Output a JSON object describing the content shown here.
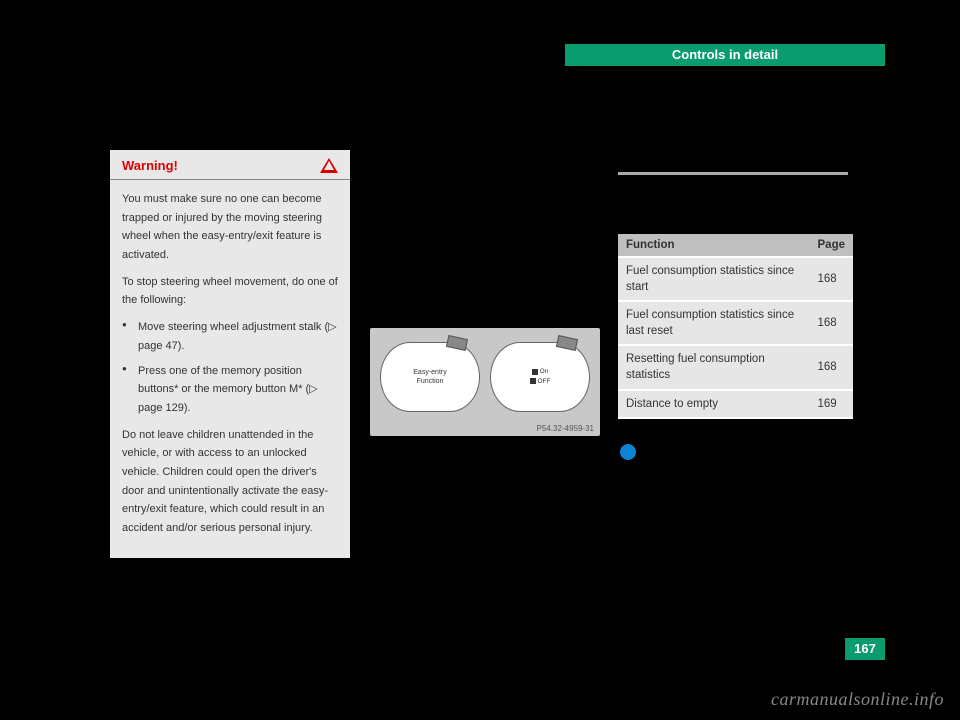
{
  "header": {
    "title": "Controls in detail"
  },
  "warning": {
    "title": "Warning!",
    "p1": "You must make sure no one can become trapped or injured by the moving steering wheel when the easy-entry/exit feature is activated.",
    "p2": "To stop steering wheel movement, do one of the following:",
    "li1": "Move steering wheel adjustment stalk (▷ page 47).",
    "li2": "Press one of the memory position buttons* or the memory button M* (▷ page 129).",
    "p3": "Do not leave children unattended in the vehicle, or with access to an unlocked vehicle. Children could open the driver's door and unintentionally activate the easy-entry/exit feature, which could result in an accident and/or serious personal injury."
  },
  "figure": {
    "leftLabel1": "Easy-entry",
    "leftLabel2": "Function",
    "rightOn": "On",
    "rightOff": "OFF",
    "code": "P54.32-4959-31"
  },
  "table": {
    "h1": "Function",
    "h2": "Page",
    "r1c1": "Fuel consumption statistics since start",
    "r1c2": "168",
    "r2c1": "Fuel consumption statistics since last reset",
    "r2c2": "168",
    "r3c1": "Resetting fuel consumption statistics",
    "r3c2": "168",
    "r4c1": "Distance to empty",
    "r4c2": "169"
  },
  "pageNumber": "167",
  "watermark": "carmanualsonline.info",
  "colors": {
    "accent": "#0a9b6f",
    "warningRed": "#d00",
    "grayBox": "#e8e8e8",
    "tableHeader": "#bfbfbf",
    "tableRow": "#e6e6e6",
    "infoBlue": "#0b84d6"
  }
}
